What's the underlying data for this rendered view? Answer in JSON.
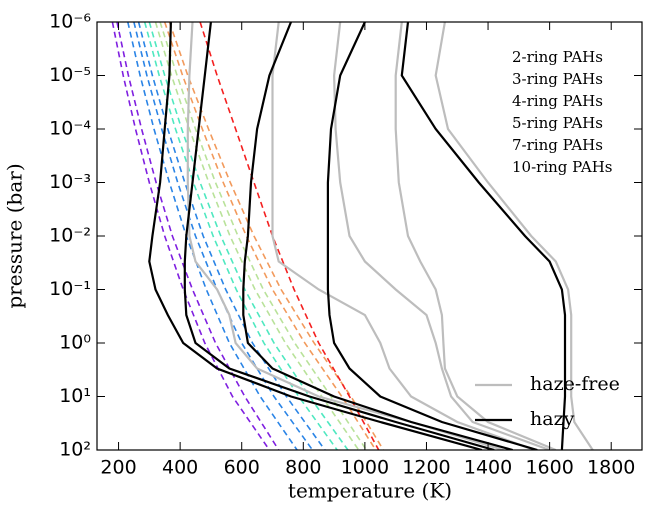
{
  "chart_data": {
    "type": "line",
    "xlabel": "temperature (K)",
    "ylabel": "pressure (bar)",
    "xlim": [
      130,
      1900
    ],
    "xticks": [
      200,
      400,
      600,
      800,
      1000,
      1200,
      1400,
      1600,
      1800
    ],
    "ylim": [
      1e-06,
      100
    ],
    "y_log": true,
    "y_inverted": true,
    "yticks": [
      {
        "value": 1e-06,
        "label": "10⁻⁶"
      },
      {
        "value": 1e-05,
        "label": "10⁻⁵"
      },
      {
        "value": 0.0001,
        "label": "10⁻⁴"
      },
      {
        "value": 0.001,
        "label": "10⁻³"
      },
      {
        "value": 0.01,
        "label": "10⁻²"
      },
      {
        "value": 0.1,
        "label": "10⁻¹"
      },
      {
        "value": 1,
        "label": "10⁰"
      },
      {
        "value": 10,
        "label": "10¹"
      },
      {
        "value": 100,
        "label": "10²"
      }
    ],
    "series": [
      {
        "name": "2-ring PAHs",
        "color": "#7f1fe0",
        "dashed": true,
        "curves": [
          {
            "x": [
              180,
              215,
              255,
              300,
              350,
              410,
              480,
              570,
              690
            ],
            "y": [
              1e-06,
              1e-05,
              0.0001,
              0.001,
              0.01,
              0.1,
              1,
              10,
              100
            ]
          },
          {
            "x": [
              195,
              232,
              275,
              322,
              375,
              440,
              515,
              610,
              720
            ],
            "y": [
              1e-06,
              1e-05,
              0.0001,
              0.001,
              0.01,
              0.1,
              1,
              10,
              100
            ]
          }
        ]
      },
      {
        "name": "3-ring PAHs",
        "color": "#2a84e6",
        "dashed": true,
        "curves": [
          {
            "x": [
              230,
              270,
              315,
              365,
              420,
              485,
              560,
              660,
              780
            ],
            "y": [
              1e-06,
              1e-05,
              0.0001,
              0.001,
              0.01,
              0.1,
              1,
              10,
              100
            ]
          },
          {
            "x": [
              250,
              292,
              340,
              392,
              450,
              520,
              600,
              705,
              830
            ],
            "y": [
              1e-06,
              1e-05,
              0.0001,
              0.001,
              0.01,
              0.1,
              1,
              10,
              100
            ]
          },
          {
            "x": [
              265,
              310,
              360,
              415,
              475,
              548,
              635,
              745,
              870
            ],
            "y": [
              1e-06,
              1e-05,
              0.0001,
              0.001,
              0.01,
              0.1,
              1,
              10,
              100
            ]
          }
        ]
      },
      {
        "name": "4-ring PAHs",
        "color": "#4fe8c0",
        "dashed": true,
        "curves": [
          {
            "x": [
              285,
              332,
              385,
              443,
              507,
              582,
              672,
              785,
              910
            ],
            "y": [
              1e-06,
              1e-05,
              0.0001,
              0.001,
              0.01,
              0.1,
              1,
              10,
              100
            ]
          },
          {
            "x": [
              300,
              350,
              405,
              465,
              532,
              610,
              705,
              820,
              945
            ],
            "y": [
              1e-06,
              1e-05,
              0.0001,
              0.001,
              0.01,
              0.1,
              1,
              10,
              100
            ]
          }
        ]
      },
      {
        "name": "5-ring PAHs",
        "color": "#b9e29a",
        "dashed": true,
        "curves": [
          {
            "x": [
              320,
              372,
              430,
              493,
              562,
              643,
              742,
              860,
              980
            ],
            "y": [
              1e-06,
              1e-05,
              0.0001,
              0.001,
              0.01,
              0.1,
              1,
              10,
              100
            ]
          },
          {
            "x": [
              335,
              390,
              450,
              515,
              588,
              670,
              772,
              890,
              1005
            ],
            "y": [
              1e-06,
              1e-05,
              0.0001,
              0.001,
              0.01,
              0.1,
              1,
              10,
              100
            ]
          }
        ]
      },
      {
        "name": "7-ring PAHs",
        "color": "#f29a5c",
        "dashed": true,
        "curves": [
          {
            "x": [
              350,
              408,
              472,
              540,
              615,
              700,
              805,
              925,
              1035
            ],
            "y": [
              1e-06,
              1e-05,
              0.0001,
              0.001,
              0.01,
              0.1,
              1,
              10,
              100
            ]
          },
          {
            "x": [
              365,
              425,
              492,
              563,
              640,
              728,
              835,
              955,
              1060
            ],
            "y": [
              1e-06,
              1e-05,
              0.0001,
              0.001,
              0.01,
              0.1,
              1,
              10,
              100
            ]
          }
        ]
      },
      {
        "name": "10-ring PAHs",
        "color": "#f42020",
        "dashed": true,
        "curves": [
          {
            "x": [
              465,
              520,
              580,
              640,
              700,
              770,
              850,
              950,
              1045
            ],
            "y": [
              1e-06,
              1e-05,
              0.0001,
              0.001,
              0.01,
              0.1,
              1,
              10,
              100
            ]
          }
        ]
      },
      {
        "name": "haze-free",
        "color": "#bdbdbd",
        "dashed": false,
        "curves": [
          {
            "x": [
              440,
              430,
              425,
              425,
              430,
              450,
              520,
              560,
              580,
              650,
              850,
              1150,
              1450
            ],
            "y": [
              1e-06,
              1e-05,
              0.0001,
              0.001,
              0.01,
              0.03,
              0.1,
              0.3,
              1,
              3,
              10,
              30,
              100
            ]
          },
          {
            "x": [
              720,
              700,
              700,
              700,
              700,
              720,
              850,
              1000,
              1050,
              1080,
              1150,
              1300,
              1550
            ],
            "y": [
              1e-06,
              1e-05,
              0.0001,
              0.001,
              0.01,
              0.03,
              0.1,
              0.3,
              1,
              3,
              10,
              30,
              100
            ]
          },
          {
            "x": [
              920,
              900,
              905,
              920,
              950,
              1000,
              1100,
              1200,
              1230,
              1250,
              1280,
              1350,
              1600
            ],
            "y": [
              1e-06,
              1e-05,
              0.0001,
              0.001,
              0.01,
              0.03,
              0.1,
              0.3,
              1,
              3,
              10,
              30,
              100
            ]
          },
          {
            "x": [
              1120,
              1100,
              1100,
              1110,
              1140,
              1180,
              1230,
              1250,
              1255,
              1260,
              1300,
              1400,
              1620
            ],
            "y": [
              1e-06,
              1e-05,
              0.0001,
              0.001,
              0.01,
              0.03,
              0.1,
              0.3,
              1,
              3,
              10,
              30,
              100
            ]
          },
          {
            "x": [
              1260,
              1230,
              1270,
              1400,
              1540,
              1620,
              1660,
              1670,
              1670,
              1670,
              1670,
              1680,
              1740
            ],
            "y": [
              1e-06,
              1e-05,
              0.0001,
              0.001,
              0.01,
              0.03,
              0.1,
              0.3,
              1,
              3,
              10,
              30,
              100
            ]
          }
        ]
      },
      {
        "name": "hazy",
        "color": "#000000",
        "dashed": false,
        "curves": [
          {
            "x": [
              370,
              365,
              350,
              335,
              310,
              300,
              320,
              360,
              410,
              520,
              760,
              1050,
              1380
            ],
            "y": [
              1e-06,
              1e-05,
              0.0001,
              0.001,
              0.01,
              0.03,
              0.1,
              0.3,
              1,
              3,
              10,
              30,
              100
            ]
          },
          {
            "x": [
              500,
              480,
              460,
              440,
              420,
              415,
              415,
              420,
              450,
              560,
              820,
              1100,
              1420
            ],
            "y": [
              1e-06,
              1e-05,
              0.0001,
              0.001,
              0.01,
              0.03,
              0.1,
              0.3,
              1,
              3,
              10,
              30,
              100
            ]
          },
          {
            "x": [
              760,
              690,
              650,
              630,
              620,
              610,
              605,
              605,
              620,
              700,
              900,
              1150,
              1480
            ],
            "y": [
              1e-06,
              1e-05,
              0.0001,
              0.001,
              0.01,
              0.03,
              0.1,
              0.3,
              1,
              3,
              10,
              30,
              100
            ]
          },
          {
            "x": [
              1000,
              920,
              890,
              880,
              880,
              880,
              880,
              885,
              900,
              950,
              1050,
              1250,
              1560
            ],
            "y": [
              1e-06,
              1e-05,
              0.0001,
              0.001,
              0.01,
              0.03,
              0.1,
              0.3,
              1,
              3,
              10,
              30,
              100
            ]
          },
          {
            "x": [
              1140,
              1120,
              1230,
              1370,
              1520,
              1600,
              1640,
              1650,
              1650,
              1650,
              1650,
              1645,
              1640
            ],
            "y": [
              1e-06,
              1e-05,
              0.0001,
              0.001,
              0.01,
              0.03,
              0.1,
              0.3,
              1,
              3,
              10,
              30,
              100
            ]
          }
        ]
      }
    ]
  }
}
